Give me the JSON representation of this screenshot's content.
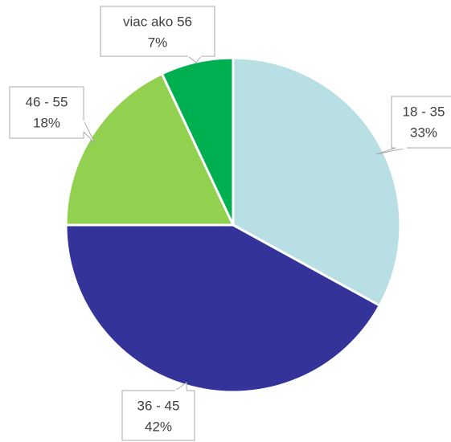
{
  "chart_data": {
    "type": "pie",
    "categories": [
      "18 - 35",
      "36 - 45",
      "46 - 55",
      "viac ako 56"
    ],
    "values": [
      33,
      42,
      18,
      7
    ],
    "value_labels": [
      "33%",
      "42%",
      "18%",
      "7%"
    ],
    "colors": [
      "#b7dfe4",
      "#333399",
      "#92d050",
      "#00b050"
    ]
  }
}
